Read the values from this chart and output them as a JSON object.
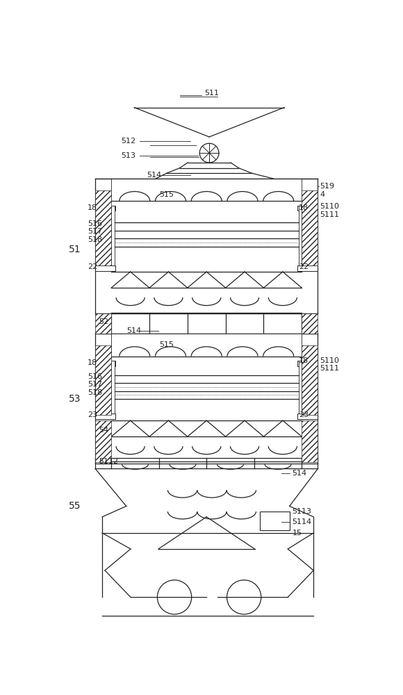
{
  "bg_color": "#ffffff",
  "line_color": "#222222",
  "fig_width": 5.8,
  "fig_height": 10.0,
  "dpi": 100
}
